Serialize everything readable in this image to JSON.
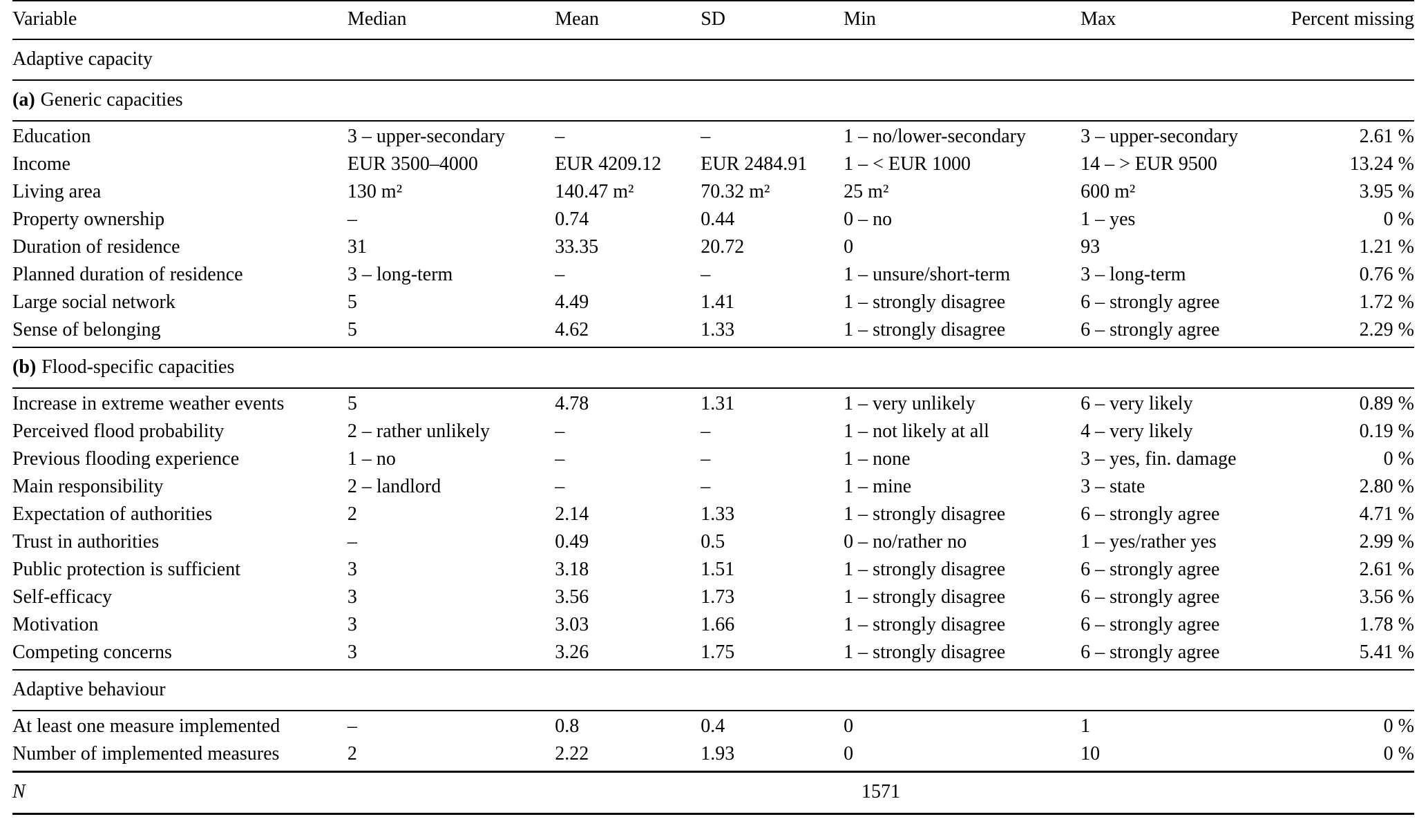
{
  "table": {
    "columns": [
      "Variable",
      "Median",
      "Mean",
      "SD",
      "Min",
      "Max",
      "Percent missing"
    ],
    "sections": [
      {
        "prefix": "",
        "title": "Adaptive capacity",
        "rows": []
      },
      {
        "prefix": "(a)",
        "title": "Generic capacities",
        "rows": [
          [
            "Education",
            "3 – upper-secondary",
            "–",
            "–",
            "1 – no/lower-secondary",
            "3 – upper-secondary",
            "2.61 %"
          ],
          [
            "Income",
            "EUR 3500–4000",
            "EUR 4209.12",
            "EUR 2484.91",
            "1 – < EUR 1000",
            "14 – > EUR 9500",
            "13.24 %"
          ],
          [
            "Living area",
            "130 m²",
            "140.47 m²",
            "70.32 m²",
            "25 m²",
            "600 m²",
            "3.95 %"
          ],
          [
            "Property ownership",
            "–",
            "0.74",
            "0.44",
            "0 – no",
            "1 – yes",
            "0 %"
          ],
          [
            "Duration of residence",
            "31",
            "33.35",
            "20.72",
            "0",
            "93",
            "1.21 %"
          ],
          [
            "Planned duration of residence",
            "3 – long-term",
            "–",
            "–",
            "1 – unsure/short-term",
            "3 – long-term",
            "0.76 %"
          ],
          [
            "Large social network",
            "5",
            "4.49",
            "1.41",
            "1 – strongly disagree",
            "6 – strongly agree",
            "1.72 %"
          ],
          [
            "Sense of belonging",
            "5",
            "4.62",
            "1.33",
            "1 – strongly disagree",
            "6 – strongly agree",
            "2.29 %"
          ]
        ]
      },
      {
        "prefix": "(b)",
        "title": "Flood-specific capacities",
        "rows": [
          [
            "Increase in extreme weather events",
            "5",
            "4.78",
            "1.31",
            "1 – very unlikely",
            "6 – very likely",
            "0.89 %"
          ],
          [
            "Perceived flood probability",
            "2 – rather unlikely",
            "–",
            "–",
            "1 – not likely at all",
            "4 – very likely",
            "0.19 %"
          ],
          [
            "Previous flooding experience",
            "1 – no",
            "–",
            "–",
            "1 – none",
            "3 – yes, fin. damage",
            "0 %"
          ],
          [
            "Main responsibility",
            "2 – landlord",
            "–",
            "–",
            "1 – mine",
            "3 – state",
            "2.80 %"
          ],
          [
            "Expectation of authorities",
            "2",
            "2.14",
            "1.33",
            "1 – strongly disagree",
            "6 – strongly agree",
            "4.71 %"
          ],
          [
            "Trust in authorities",
            "–",
            "0.49",
            "0.5",
            "0 – no/rather no",
            "1 – yes/rather yes",
            "2.99 %"
          ],
          [
            "Public protection is sufficient",
            "3",
            "3.18",
            "1.51",
            "1 – strongly disagree",
            "6 – strongly agree",
            "2.61 %"
          ],
          [
            "Self-efficacy",
            "3",
            "3.56",
            "1.73",
            "1 – strongly disagree",
            "6 – strongly agree",
            "3.56 %"
          ],
          [
            "Motivation",
            "3",
            "3.03",
            "1.66",
            "1 – strongly disagree",
            "6 – strongly agree",
            "1.78 %"
          ],
          [
            "Competing concerns",
            "3",
            "3.26",
            "1.75",
            "1 – strongly disagree",
            "6 – strongly agree",
            "5.41 %"
          ]
        ]
      },
      {
        "prefix": "",
        "title": "Adaptive behaviour",
        "rows": [
          [
            "At least one measure implemented",
            "–",
            "0.8",
            "0.4",
            "0",
            "1",
            "0 %"
          ],
          [
            "Number of implemented measures",
            "2",
            "2.22",
            "1.93",
            "0",
            "10",
            "0 %"
          ]
        ]
      }
    ],
    "footer": {
      "label": "N",
      "value": "1571"
    }
  }
}
